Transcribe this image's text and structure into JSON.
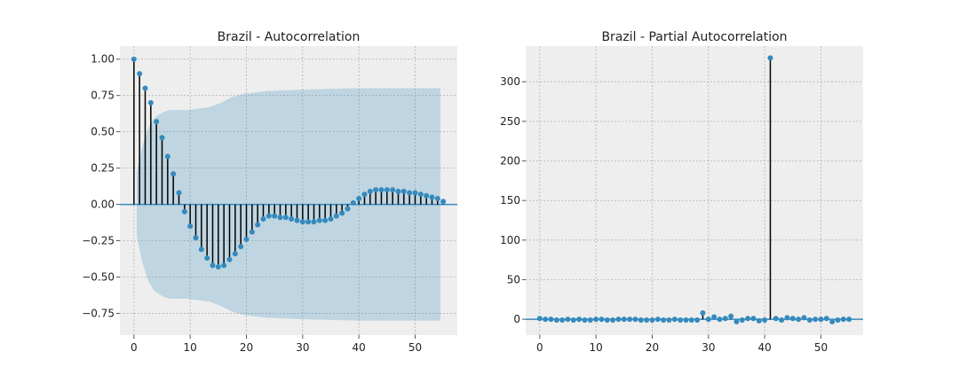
{
  "chart_data": [
    {
      "type": "stem",
      "title": "Brazil - Autocorrelation",
      "xlabel": "",
      "ylabel": "",
      "xlim": [
        -2.5,
        57.5
      ],
      "ylim": [
        -0.9,
        1.09
      ],
      "xticks": [
        0,
        10,
        20,
        30,
        40,
        50
      ],
      "yticks": [
        1.0,
        0.75,
        0.5,
        0.25,
        0.0,
        -0.25,
        -0.5,
        -0.75
      ],
      "ytick_labels": [
        "1.00",
        "0.75",
        "0.50",
        "0.25",
        "0.00",
        "−0.25",
        "−0.50",
        "−0.75"
      ],
      "xtick_labels": [
        "0",
        "10",
        "20",
        "30",
        "40",
        "50"
      ],
      "grid": true,
      "series": [
        {
          "x": [
            0,
            1,
            2,
            3,
            4,
            5,
            6,
            7,
            8,
            9,
            10,
            11,
            12,
            13,
            14,
            15,
            16,
            17,
            18,
            19,
            20,
            21,
            22,
            23,
            24,
            25,
            26,
            27,
            28,
            29,
            30,
            31,
            32,
            33,
            34,
            35,
            36,
            37,
            38,
            39,
            40,
            41,
            42,
            43,
            44,
            45,
            46,
            47,
            48,
            49,
            50,
            51,
            52,
            53,
            54,
            55
          ],
          "values": [
            1.0,
            0.9,
            0.8,
            0.7,
            0.57,
            0.46,
            0.33,
            0.21,
            0.08,
            -0.05,
            -0.15,
            -0.23,
            -0.31,
            -0.37,
            -0.42,
            -0.43,
            -0.42,
            -0.38,
            -0.34,
            -0.29,
            -0.24,
            -0.19,
            -0.14,
            -0.1,
            -0.08,
            -0.08,
            -0.09,
            -0.09,
            -0.1,
            -0.11,
            -0.12,
            -0.12,
            -0.12,
            -0.11,
            -0.11,
            -0.1,
            -0.08,
            -0.06,
            -0.03,
            0.01,
            0.04,
            0.07,
            0.09,
            0.1,
            0.1,
            0.1,
            0.1,
            0.09,
            0.09,
            0.08,
            0.08,
            0.07,
            0.06,
            0.05,
            0.04,
            0.02
          ]
        }
      ],
      "confidence_band": {
        "x": [
          1,
          2,
          3,
          4,
          5,
          6,
          7,
          8,
          9,
          10,
          12,
          14,
          16,
          18,
          20,
          24,
          30,
          40,
          50,
          55
        ],
        "upper": [
          0.22,
          0.4,
          0.52,
          0.59,
          0.62,
          0.64,
          0.65,
          0.65,
          0.65,
          0.65,
          0.66,
          0.67,
          0.7,
          0.74,
          0.76,
          0.78,
          0.79,
          0.8,
          0.8,
          0.8
        ],
        "lower": [
          -0.22,
          -0.4,
          -0.52,
          -0.59,
          -0.62,
          -0.64,
          -0.65,
          -0.65,
          -0.65,
          -0.65,
          -0.66,
          -0.67,
          -0.7,
          -0.74,
          -0.76,
          -0.78,
          -0.79,
          -0.8,
          -0.8,
          -0.8
        ]
      },
      "colors": {
        "stem": "#000000",
        "marker": "#348ABD",
        "band": "#348ABD",
        "zero_line": "#348ABD",
        "axes_bg": "#EEEEEE",
        "grid": "#B2B2B2"
      }
    },
    {
      "type": "stem",
      "title": "Brazil - Partial Autocorrelation",
      "xlabel": "",
      "ylabel": "",
      "xlim": [
        -2.5,
        57.5
      ],
      "ylim": [
        -20,
        345
      ],
      "xticks": [
        0,
        10,
        20,
        30,
        40,
        50
      ],
      "yticks": [
        0,
        50,
        100,
        150,
        200,
        250,
        300
      ],
      "ytick_labels": [
        "0",
        "50",
        "100",
        "150",
        "200",
        "250",
        "300"
      ],
      "xtick_labels": [
        "0",
        "10",
        "20",
        "30",
        "40",
        "50"
      ],
      "grid": true,
      "series": [
        {
          "x": [
            0,
            1,
            2,
            3,
            4,
            5,
            6,
            7,
            8,
            9,
            10,
            11,
            12,
            13,
            14,
            15,
            16,
            17,
            18,
            19,
            20,
            21,
            22,
            23,
            24,
            25,
            26,
            27,
            28,
            29,
            30,
            31,
            32,
            33,
            34,
            35,
            36,
            37,
            38,
            39,
            40,
            41,
            42,
            43,
            44,
            45,
            46,
            47,
            48,
            49,
            50,
            51,
            52,
            53,
            54,
            55
          ],
          "values": [
            1,
            0,
            0,
            -1,
            -1,
            0,
            -1,
            0,
            -1,
            -1,
            0,
            0,
            -1,
            -1,
            0,
            0,
            0,
            0,
            -1,
            -1,
            -1,
            0,
            -1,
            -1,
            0,
            -1,
            -1,
            -1,
            -1,
            8,
            0,
            3,
            0,
            1,
            4,
            -3,
            -1,
            1,
            1,
            -2,
            -1,
            330,
            1,
            -1,
            2,
            1,
            0,
            2,
            -1,
            0,
            0,
            1,
            -3,
            -1,
            0,
            0
          ]
        }
      ],
      "colors": {
        "stem": "#000000",
        "marker": "#348ABD",
        "zero_line": "#348ABD",
        "axes_bg": "#EEEEEE",
        "grid": "#B2B2B2"
      }
    }
  ]
}
